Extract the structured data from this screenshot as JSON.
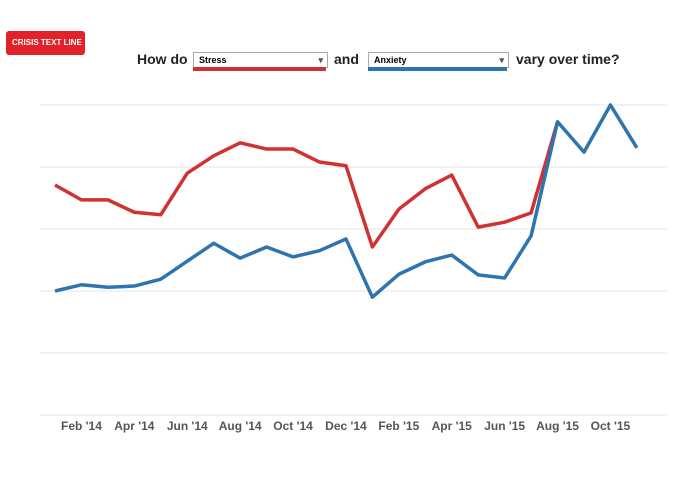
{
  "logo": "CRISIS TEXT LINE",
  "chart_data": {
    "type": "line",
    "title_parts": [
      "How do",
      "and",
      "vary over time?"
    ],
    "categories": [
      null,
      "Feb '14",
      null,
      "Apr '14",
      null,
      "Jun '14",
      null,
      "Aug '14",
      null,
      "Oct '14",
      null,
      "Dec '14",
      null,
      "Feb '15",
      null,
      "Apr '15",
      null,
      "Jun '15",
      null,
      "Aug '15",
      null,
      "Oct '15",
      null
    ],
    "series": [
      {
        "name": "Stress",
        "color": "#d03232",
        "values": [
          3.71,
          3.47,
          3.47,
          3.27,
          3.23,
          3.9,
          4.18,
          4.39,
          4.29,
          4.29,
          4.08,
          4.02,
          2.71,
          3.32,
          3.65,
          3.87,
          3.03,
          3.11,
          3.26,
          4.73,
          null,
          null,
          null
        ]
      },
      {
        "name": "Anxiety",
        "color": "#2e75b0",
        "values": [
          2.0,
          2.1,
          2.06,
          2.08,
          2.19,
          2.48,
          2.77,
          2.53,
          2.71,
          2.55,
          2.65,
          2.84,
          1.9,
          2.27,
          2.47,
          2.58,
          2.26,
          2.21,
          2.89,
          4.73,
          4.24,
          5.0,
          4.31
        ]
      }
    ],
    "ylim": [
      0,
      5
    ],
    "gridlines": [
      0,
      1,
      2,
      3,
      4,
      5
    ],
    "grid": true
  }
}
